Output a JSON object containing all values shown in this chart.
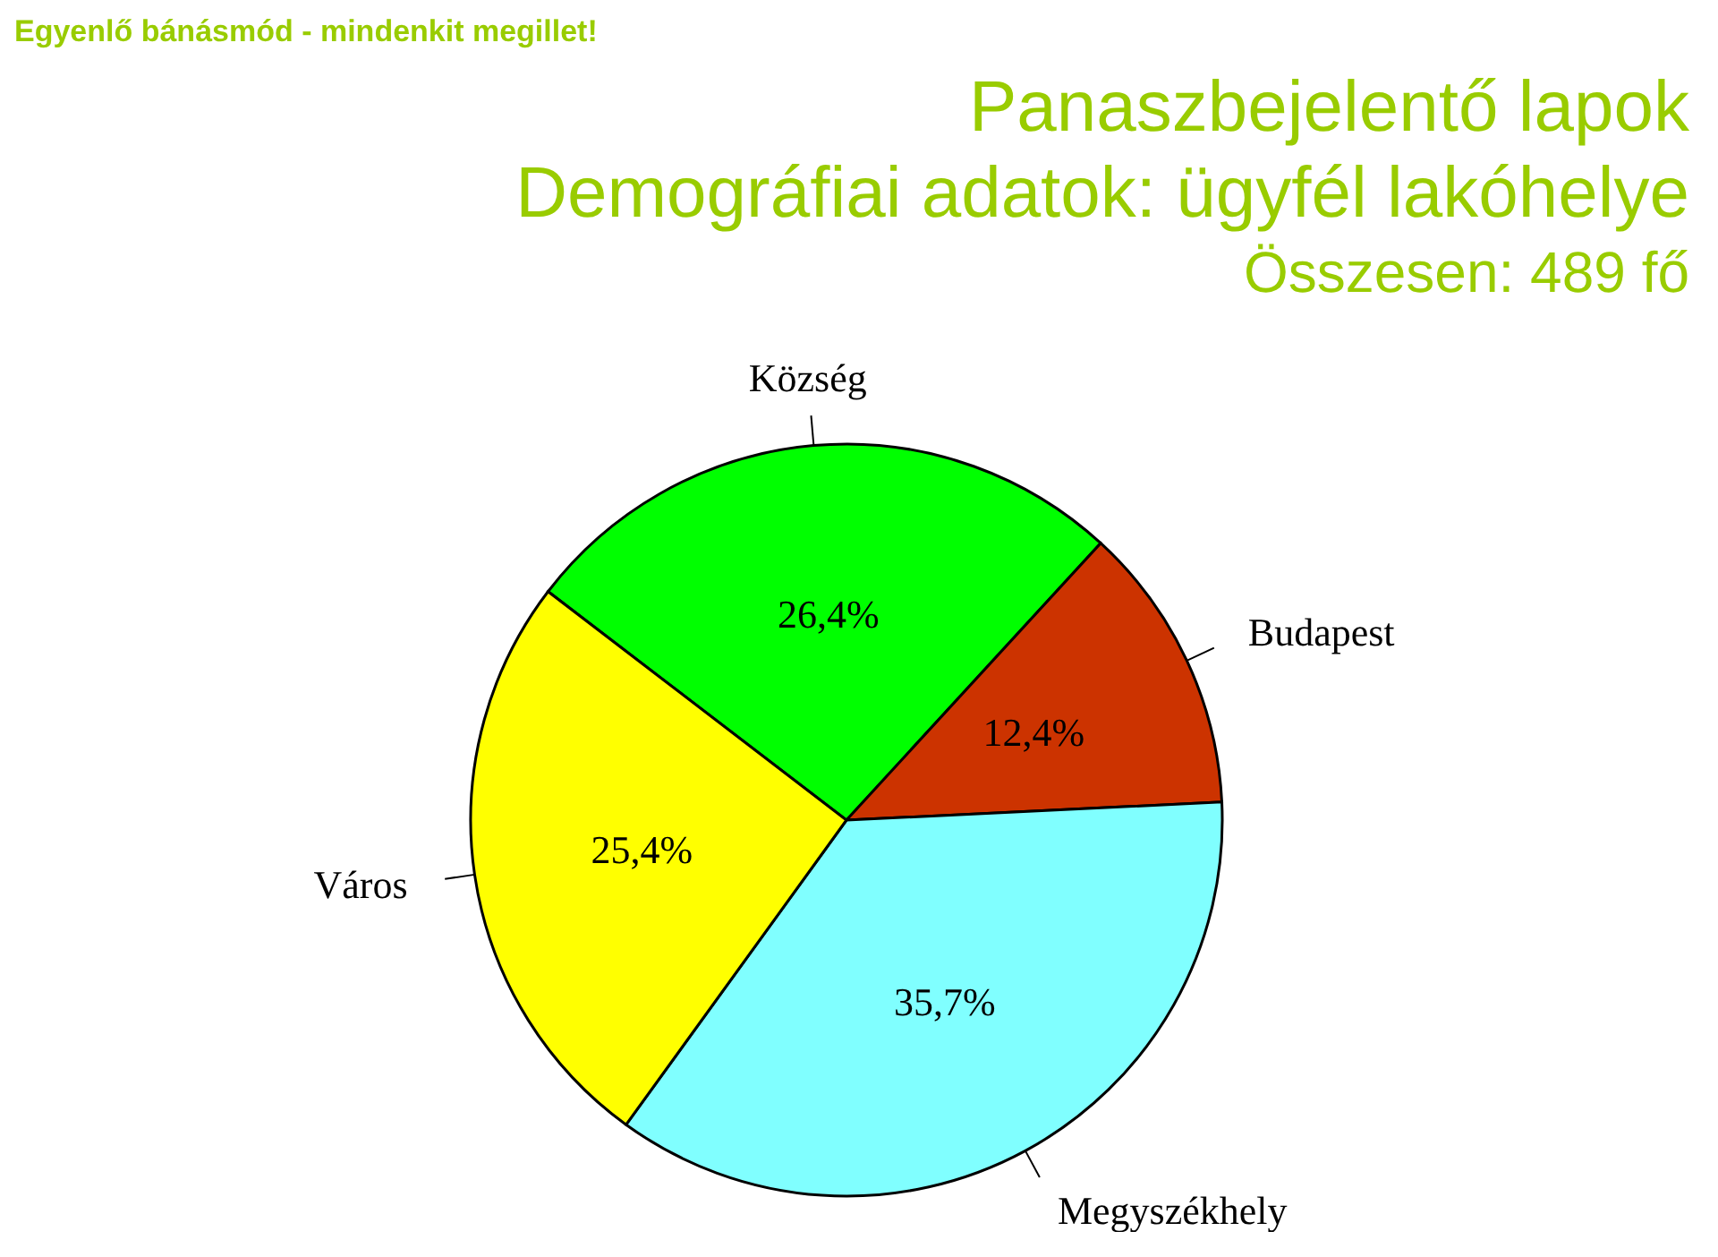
{
  "chart_data": {
    "type": "pie",
    "title": "Panaszbejelentő lapok",
    "subtitle": "Demográfiai adatok: ügyfél lakóhelye",
    "annotations": [
      "Összesen: 489 fő",
      "Egyenlő bánásmód - mindenkit megillet!"
    ],
    "categories": [
      "Község",
      "Budapest",
      "Megyszékhely",
      "Város"
    ],
    "values": [
      26.4,
      12.4,
      35.7,
      25.4
    ],
    "colors": [
      "#00ff00",
      "#cc3300",
      "#80ffff",
      "#ffff00"
    ],
    "value_labels": [
      "26,4%",
      "12,4%",
      "35,7%",
      "25,4%"
    ],
    "legend": false
  }
}
